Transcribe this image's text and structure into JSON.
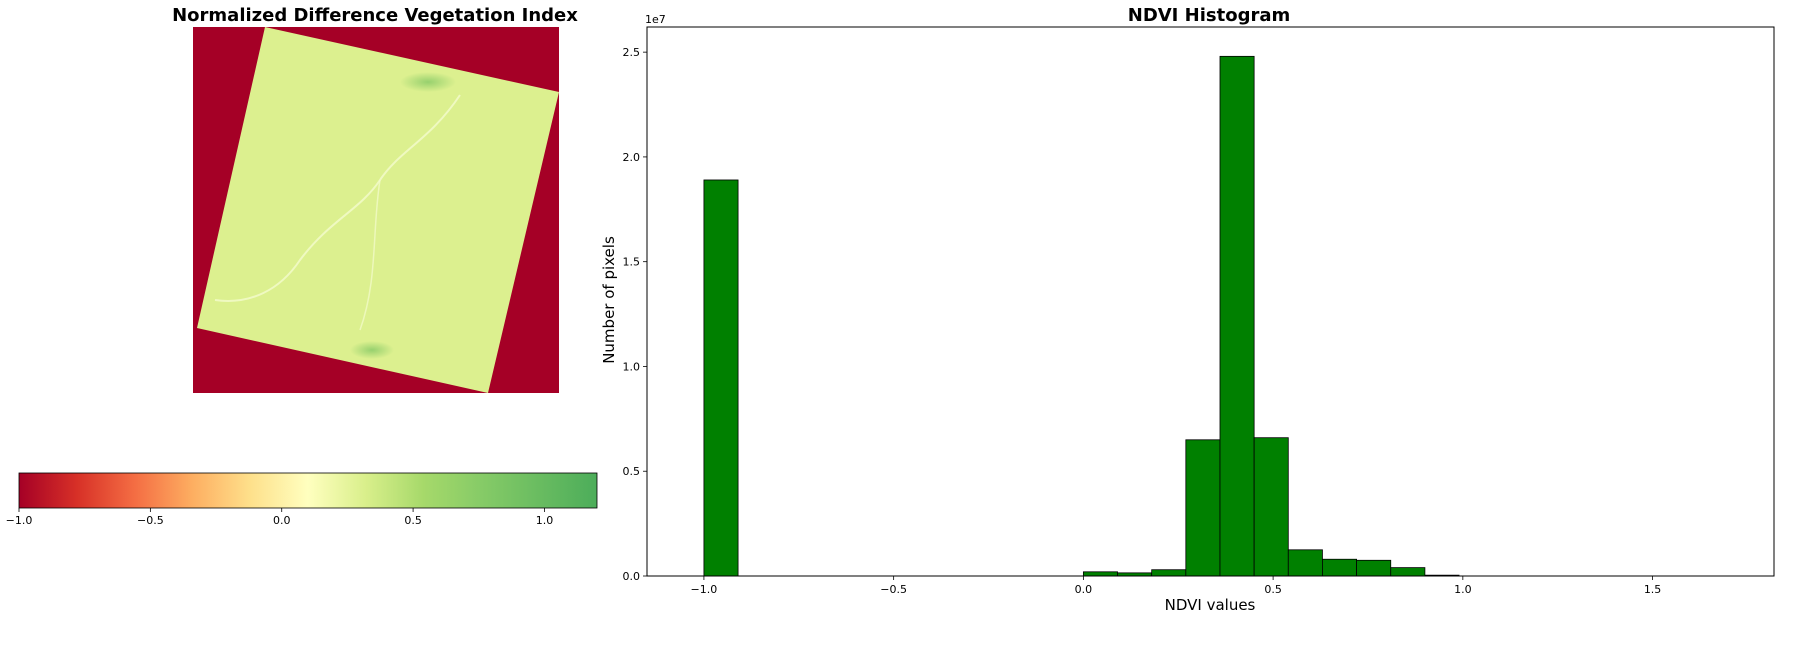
{
  "map_panel": {
    "title": "Normalized Difference Vegetation Index",
    "colormap": "RdYlGn",
    "nodata_color": "#a50026",
    "scene_color": "#dcf08f"
  },
  "colorbar": {
    "ticks": [
      {
        "value": -1.0,
        "label": "−1.0"
      },
      {
        "value": -0.5,
        "label": "−0.5"
      },
      {
        "value": 0.0,
        "label": "0.0"
      },
      {
        "value": 0.5,
        "label": "0.5"
      },
      {
        "value": 1.0,
        "label": "1.0"
      }
    ],
    "range": [
      -1.0,
      1.2
    ]
  },
  "chart_data": {
    "type": "bar",
    "title": "NDVI Histogram",
    "xlabel": "NDVI values",
    "ylabel": "Number of pixels",
    "y_offset_label": "1e7",
    "xlim": [
      -1.15,
      1.82
    ],
    "ylim": [
      0,
      2.62
    ],
    "bar_color": "#008000",
    "edge_color": "#000000",
    "x_ticks": [
      {
        "value": -1.0,
        "label": "−1.0"
      },
      {
        "value": -0.5,
        "label": "−0.5"
      },
      {
        "value": 0.0,
        "label": "0.0"
      },
      {
        "value": 0.5,
        "label": "0.5"
      },
      {
        "value": 1.0,
        "label": "1.0"
      },
      {
        "value": 1.5,
        "label": "1.5"
      }
    ],
    "y_ticks": [
      {
        "value": 0.0,
        "label": "0.0"
      },
      {
        "value": 0.5,
        "label": "0.5"
      },
      {
        "value": 1.0,
        "label": "1.0"
      },
      {
        "value": 1.5,
        "label": "1.5"
      },
      {
        "value": 2.0,
        "label": "2.0"
      },
      {
        "value": 2.5,
        "label": "2.5"
      }
    ],
    "bins": [
      {
        "x0": -1.0,
        "x1": -0.91,
        "count": 1.89
      },
      {
        "x0": 0.0,
        "x1": 0.09,
        "count": 0.02
      },
      {
        "x0": 0.09,
        "x1": 0.18,
        "count": 0.015
      },
      {
        "x0": 0.18,
        "x1": 0.27,
        "count": 0.03
      },
      {
        "x0": 0.27,
        "x1": 0.36,
        "count": 0.65
      },
      {
        "x0": 0.36,
        "x1": 0.45,
        "count": 2.48
      },
      {
        "x0": 0.45,
        "x1": 0.54,
        "count": 0.66
      },
      {
        "x0": 0.54,
        "x1": 0.63,
        "count": 0.125
      },
      {
        "x0": 0.63,
        "x1": 0.72,
        "count": 0.08
      },
      {
        "x0": 0.72,
        "x1": 0.81,
        "count": 0.075
      },
      {
        "x0": 0.81,
        "x1": 0.9,
        "count": 0.04
      },
      {
        "x0": 0.9,
        "x1": 0.99,
        "count": 0.004
      }
    ]
  }
}
